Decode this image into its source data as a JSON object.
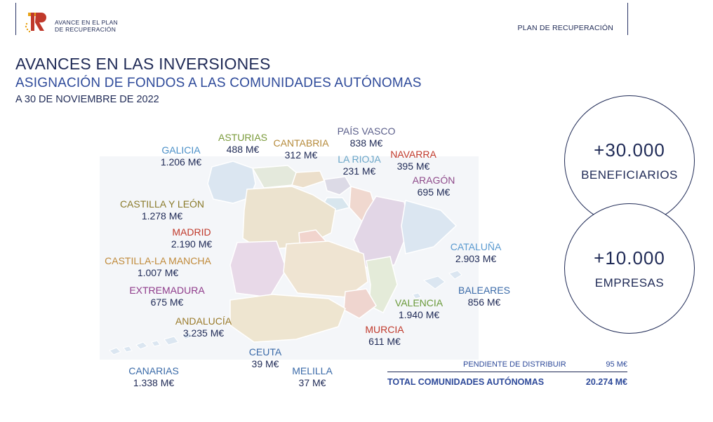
{
  "header": {
    "logo_line1": "AVANCE EN EL PLAN",
    "logo_line2": "DE RECUPERACIÓN",
    "right_label": "PLAN DE RECUPERACIÓN"
  },
  "titles": {
    "main": "AVANCES EN LAS INVERSIONES",
    "sub": "ASIGNACIÓN DE FONDOS A LAS COMUNIDADES AUTÓNOMAS",
    "date": "A 30 DE NOVIEMBRE DE 2022"
  },
  "regions": {
    "galicia": {
      "name": "GALICIA",
      "value": "1.206 M€",
      "color": "#4a8fc7"
    },
    "asturias": {
      "name": "ASTURIAS",
      "value": "488 M€",
      "color": "#7a9a3a"
    },
    "cantabria": {
      "name": "CANTABRIA",
      "value": "312 M€",
      "color": "#b58a3a"
    },
    "pais_vasco": {
      "name": "PAÍS VASCO",
      "value": "838 M€",
      "color": "#5a5e8a"
    },
    "la_rioja": {
      "name": "LA RIOJA",
      "value": "231 M€",
      "color": "#6aa6c8"
    },
    "navarra": {
      "name": "NAVARRA",
      "value": "395 M€",
      "color": "#c0392b"
    },
    "aragon": {
      "name": "ARAGÓN",
      "value": "695 M€",
      "color": "#8e4a8a"
    },
    "castilla_leon": {
      "name": "CASTILLA Y LEÓN",
      "value": "1.278 M€",
      "color": "#8a7a2a"
    },
    "madrid": {
      "name": "MADRID",
      "value": "2.190 M€",
      "color": "#c0392b"
    },
    "castilla_mancha": {
      "name": "CASTILLA-LA MANCHA",
      "value": "1.007 M€",
      "color": "#c08a3a"
    },
    "extremadura": {
      "name": "EXTREMADURA",
      "value": "675 M€",
      "color": "#8e3a8a"
    },
    "andalucia": {
      "name": "ANDALUCÍA",
      "value": "3.235 M€",
      "color": "#9a7a2a"
    },
    "cataluna": {
      "name": "CATALUÑA",
      "value": "2.903 M€",
      "color": "#5a9ad0"
    },
    "baleares": {
      "name": "BALEARES",
      "value": "856 M€",
      "color": "#3a6aa8"
    },
    "valencia": {
      "name": "VALENCIA",
      "value": "1.940 M€",
      "color": "#6a9a3a"
    },
    "murcia": {
      "name": "MURCIA",
      "value": "611 M€",
      "color": "#c0392b"
    },
    "ceuta": {
      "name": "CEUTA",
      "value": "39 M€",
      "color": "#3a6aa8"
    },
    "melilla": {
      "name": "MELILLA",
      "value": "37 M€",
      "color": "#3a6aa8"
    },
    "canarias": {
      "name": "CANARIAS",
      "value": "1.338 M€",
      "color": "#3a6aa8"
    }
  },
  "stats": {
    "beneficiarios_value": "+30.000",
    "beneficiarios_label": "BENEFICIARIOS",
    "empresas_value": "+10.000",
    "empresas_label": "EMPRESAS"
  },
  "totals": {
    "pending_label": "PENDIENTE DE DISTRIBUIR",
    "pending_value": "95 M€",
    "total_label": "TOTAL COMUNIDADES AUTÓNOMAS",
    "total_value": "20.274 M€"
  }
}
